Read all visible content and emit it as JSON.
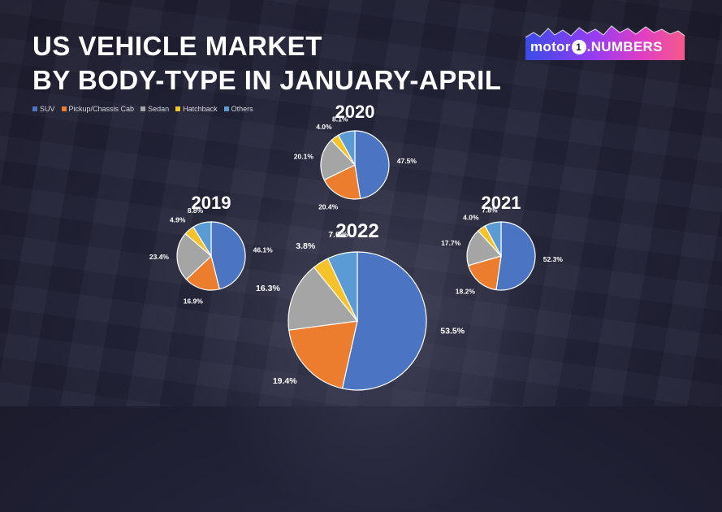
{
  "title_lines": [
    "US VEHICLE MARKET",
    "BY BODY-TYPE IN JANUARY-APRIL"
  ],
  "logo": {
    "part1": "motor",
    "part2": "1",
    "part3": ".NUMBERS"
  },
  "colors": {
    "SUV": "#4b74c3",
    "Pickup/Chassis Cab": "#ec7d2f",
    "Sedan": "#a5a5a5",
    "Hatchback": "#f6c22a",
    "Others": "#5b9bd5"
  },
  "chart_data": [
    {
      "type": "pie",
      "title": "2019",
      "categories": [
        "SUV",
        "Pickup/Chassis Cab",
        "Sedan",
        "Hatchback",
        "Others"
      ],
      "values": [
        46.1,
        16.9,
        23.4,
        4.9,
        8.8
      ],
      "labels": [
        "46.1%",
        "16.9%",
        "23.4%",
        "4.9%",
        "8.8%"
      ]
    },
    {
      "type": "pie",
      "title": "2020",
      "categories": [
        "SUV",
        "Pickup/Chassis Cab",
        "Sedan",
        "Hatchback",
        "Others"
      ],
      "values": [
        47.5,
        20.4,
        20.1,
        4.0,
        8.1
      ],
      "labels": [
        "47.5%",
        "20.4%",
        "20.1%",
        "4.0%",
        "8.1%"
      ]
    },
    {
      "type": "pie",
      "title": "2021",
      "categories": [
        "SUV",
        "Pickup/Chassis Cab",
        "Sedan",
        "Hatchback",
        "Others"
      ],
      "values": [
        52.3,
        18.2,
        17.7,
        4.0,
        7.8
      ],
      "labels": [
        "52.3%",
        "18.2%",
        "17.7%",
        "4.0%",
        "7.8%"
      ]
    },
    {
      "type": "pie",
      "title": "2022",
      "categories": [
        "SUV",
        "Pickup/Chassis Cab",
        "Sedan",
        "Hatchback",
        "Others"
      ],
      "values": [
        53.5,
        19.4,
        16.3,
        3.8,
        7.0
      ],
      "labels": [
        "53.5%",
        "19.4%",
        "16.3%",
        "3.8%",
        "7.0%"
      ]
    }
  ],
  "legend": [
    "SUV",
    "Pickup/Chassis Cab",
    "Sedan",
    "Hatchback",
    "Others"
  ]
}
